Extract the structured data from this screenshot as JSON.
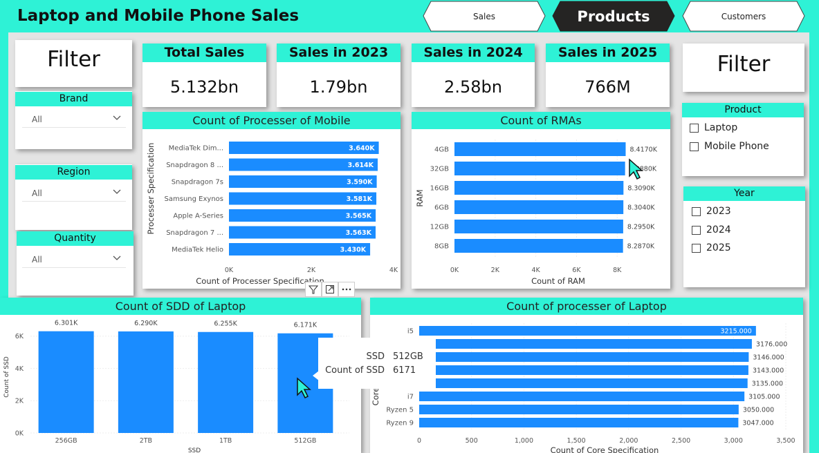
{
  "header": {
    "title": "Laptop and Mobile Phone Sales"
  },
  "nav": {
    "tabs": [
      {
        "label": "Sales"
      },
      {
        "label": "Products"
      },
      {
        "label": "Customers"
      }
    ],
    "active": "Products"
  },
  "left_filter": {
    "title": "Filter",
    "brand": {
      "label": "Brand",
      "value": "All"
    },
    "region": {
      "label": "Region",
      "value": "All"
    },
    "quantity": {
      "label": "Quantity",
      "value": "All"
    }
  },
  "kpis": [
    {
      "label": "Total Sales",
      "value": "5.132bn"
    },
    {
      "label": "Sales in 2023",
      "value": "1.79bn"
    },
    {
      "label": "Sales in 2024",
      "value": "2.58bn"
    },
    {
      "label": "Sales in 2025",
      "value": "766M"
    }
  ],
  "right_filter": {
    "title": "Filter",
    "product": {
      "label": "Product",
      "options": [
        "Laptop",
        "Mobile Phone"
      ]
    },
    "year": {
      "label": "Year",
      "options": [
        "2023",
        "2024",
        "2025"
      ]
    }
  },
  "tooltip": {
    "row1_label": "SSD",
    "row1_value": "512GB",
    "row2_label": "Count of SSD",
    "row2_value": "6171"
  },
  "colors": {
    "accent": "#2ef2d6",
    "bar": "#1a8cff",
    "dark": "#252423"
  },
  "chart_data": [
    {
      "id": "mobile_processor",
      "type": "bar",
      "orientation": "horizontal",
      "title": "Count of Processer of Mobile",
      "ylabel": "Processer Specification",
      "xlabel": "Count of Processer Specification",
      "categories": [
        "MediaTek Dim...",
        "Snapdragon 8 ...",
        "Snapdragon 7s",
        "Samsung Exynos",
        "Apple A-Series",
        "Snapdragon 7 ...",
        "MediaTek Helio"
      ],
      "values": [
        3640,
        3614,
        3590,
        3581,
        3565,
        3563,
        3430
      ],
      "labels": [
        "3.640K",
        "3.614K",
        "3.590K",
        "3.581K",
        "3.565K",
        "3.563K",
        "3.430K"
      ],
      "xticks": [
        "0K",
        "2K",
        "4K"
      ],
      "xlim": [
        0,
        4000
      ]
    },
    {
      "id": "ram",
      "type": "bar",
      "orientation": "horizontal",
      "title": "Count of RMAs",
      "ylabel": "RAM",
      "xlabel": "Count of RAM",
      "categories": [
        "4GB",
        "32GB",
        "16GB",
        "6GB",
        "12GB",
        "8GB"
      ],
      "values": [
        8417,
        8388,
        8309,
        8304,
        8295,
        8287
      ],
      "labels": [
        "8.4170K",
        "8.3880K",
        "8.3090K",
        "8.3040K",
        "8.2950K",
        "8.2870K"
      ],
      "xticks": [
        "0K",
        "2K",
        "4K",
        "6K",
        "8K"
      ],
      "xlim": [
        0,
        8400
      ]
    },
    {
      "id": "laptop_ssd",
      "type": "bar",
      "orientation": "vertical",
      "title": "Count of SDD of Laptop",
      "ylabel": "Count of SSD",
      "xlabel": "SSD",
      "categories": [
        "256GB",
        "2TB",
        "1TB",
        "512GB"
      ],
      "values": [
        6301,
        6290,
        6255,
        6171
      ],
      "labels": [
        "6.301K",
        "6.290K",
        "6.255K",
        "6.171K"
      ],
      "yticks": [
        "0K",
        "2K",
        "4K",
        "6K"
      ],
      "ylim": [
        0,
        6800
      ]
    },
    {
      "id": "laptop_processor",
      "type": "bar",
      "orientation": "horizontal",
      "title": "Count of processer of Laptop",
      "ylabel": "Core",
      "xlabel": "Count of Core Specification",
      "categories": [
        "i5",
        "",
        "",
        "",
        "",
        "i7",
        "Ryzen 5",
        "Ryzen 9"
      ],
      "values": [
        3215,
        3176,
        3146,
        3143,
        3135,
        3105,
        3050,
        3047
      ],
      "labels": [
        "3215.000",
        "3176.000",
        "3146.000",
        "3143.000",
        "3135.000",
        "3105.000",
        "3050.000",
        "3047.000"
      ],
      "xticks": [
        "0",
        "500",
        "1,000",
        "1,500",
        "2,000",
        "2,500",
        "3,000",
        "3,500"
      ],
      "xlim": [
        0,
        3500
      ]
    }
  ]
}
